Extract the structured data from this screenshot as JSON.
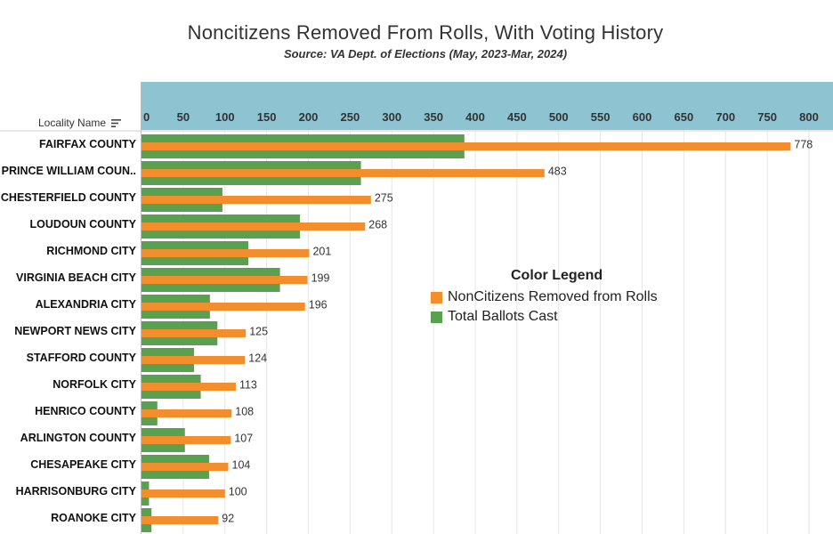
{
  "chart_data": {
    "type": "bar",
    "orientation": "horizontal",
    "title": "Noncitizens Removed From Rolls, With Voting History",
    "subtitle": "Source: VA Dept. of Elections (May, 2023-Mar, 2024)",
    "row_header": "Locality Name",
    "xlim": [
      0,
      820
    ],
    "xticks": [
      0,
      50,
      100,
      150,
      200,
      250,
      300,
      350,
      400,
      450,
      500,
      550,
      600,
      650,
      700,
      750,
      800
    ],
    "categories": [
      "FAIRFAX COUNTY",
      "PRINCE WILLIAM COUN..",
      "CHESTERFIELD COUNTY",
      "LOUDOUN COUNTY",
      "RICHMOND CITY",
      "VIRGINIA BEACH CITY",
      "ALEXANDRIA CITY",
      "NEWPORT NEWS CITY",
      "STAFFORD COUNTY",
      "NORFOLK CITY",
      "HENRICO COUNTY",
      "ARLINGTON COUNTY",
      "CHESAPEAKE CITY",
      "HARRISONBURG CITY",
      "ROANOKE CITY"
    ],
    "series": [
      {
        "name": "NonCitizens Removed from Rolls",
        "color": "#f28e2b",
        "values": [
          778,
          483,
          275,
          268,
          201,
          199,
          196,
          125,
          124,
          113,
          108,
          107,
          104,
          100,
          92
        ],
        "labeled": true
      },
      {
        "name": "Total Ballots Cast",
        "color": "#59a14f",
        "values": [
          387,
          263,
          97,
          190,
          128,
          166,
          82,
          91,
          63,
          71,
          19,
          52,
          81,
          9,
          12
        ],
        "labeled": false
      }
    ],
    "legend": {
      "title": "Color Legend",
      "placement": "center-right"
    }
  }
}
